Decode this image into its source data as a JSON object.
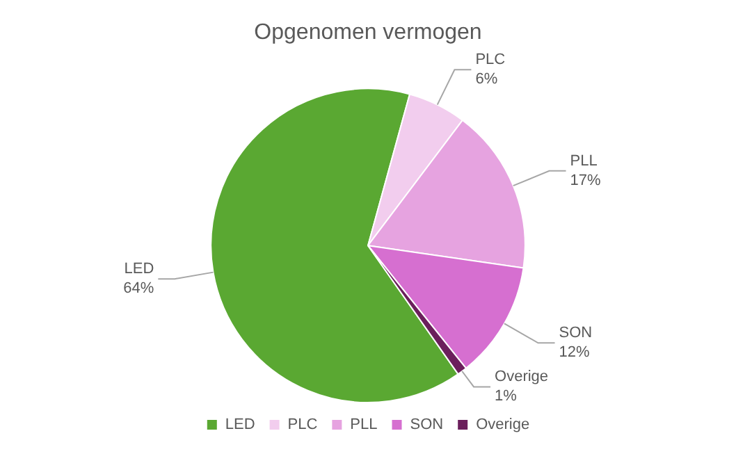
{
  "chart_data": {
    "type": "pie",
    "title": "Opgenomen vermogen",
    "categories": [
      "LED",
      "PLC",
      "PLL",
      "SON",
      "Overige"
    ],
    "values": [
      64,
      6,
      17,
      12,
      1
    ],
    "colors": [
      "#5aa832",
      "#f2cdee",
      "#e6a3e0",
      "#d66fd0",
      "#6b1f5c"
    ],
    "value_labels": [
      "64%",
      "6%",
      "17%",
      "12%",
      "1%"
    ],
    "legend": "bottom"
  }
}
